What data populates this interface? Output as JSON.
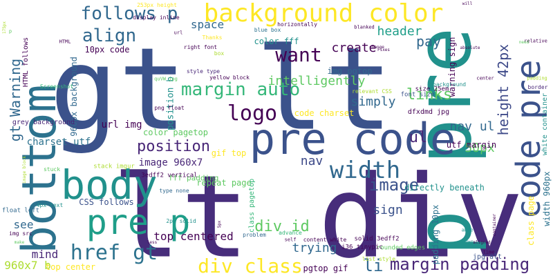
{
  "palette": {
    "background": "#ffffff",
    "c1": "#440154",
    "c2": "#3b528b",
    "c3": "#21918c",
    "c4": "#5ec962",
    "c5": "#fde725",
    "c6": "#2c728e",
    "c7": "#27ad81",
    "c8": "#addc30"
  },
  "words": [
    {
      "text": "gt lt",
      "color": "#3b528b"
    },
    {
      "text": "lt div",
      "color": "#472d7b"
    },
    {
      "text": "p pre",
      "color": "#21918c"
    },
    {
      "text": "bottom",
      "color": "#2c728e"
    },
    {
      "text": "pre code",
      "color": "#3b528b"
    },
    {
      "text": "body",
      "color": "#21918c"
    },
    {
      "text": "pre p",
      "color": "#1f9e89"
    },
    {
      "text": "code pre",
      "color": "#3b528b"
    },
    {
      "text": "background color",
      "color": "#fde725"
    },
    {
      "text": "width",
      "color": "#31688e"
    },
    {
      "text": "div class",
      "color": "#fde725"
    },
    {
      "text": "href gt",
      "color": "#2c728e"
    },
    {
      "text": "logo",
      "color": "#440154"
    },
    {
      "text": "margin auto",
      "color": "#35b779"
    },
    {
      "text": "align",
      "color": "#31688e"
    },
    {
      "text": "follows p",
      "color": "#31688e"
    },
    {
      "text": "want",
      "color": "#440154"
    },
    {
      "text": "margin padding",
      "color": "#482677"
    },
    {
      "text": "gt Warning",
      "color": "#31688e"
    },
    {
      "text": "div id",
      "color": "#5ec962"
    },
    {
      "text": "image",
      "color": "#3b528b"
    },
    {
      "text": "position",
      "color": "#482677"
    },
    {
      "text": "height 42px",
      "color": "#3e4a89"
    },
    {
      "text": "li",
      "color": "#31688e"
    },
    {
      "text": "header",
      "color": "#1f9e89"
    },
    {
      "text": "create",
      "color": "#440154"
    },
    {
      "text": "nav",
      "color": "#3e4a89"
    },
    {
      "text": "ul",
      "color": "#482677"
    },
    {
      "text": "pay",
      "color": "#31688e"
    },
    {
      "text": "links",
      "color": "#5ec962"
    },
    {
      "text": "nav ul",
      "color": "#31688e"
    },
    {
      "text": "50px",
      "color": "#5ec962"
    },
    {
      "text": "simply",
      "color": "#31688e"
    },
    {
      "text": "intelligently",
      "color": "#5ec962"
    },
    {
      "text": "trying",
      "color": "#31688e"
    },
    {
      "text": "sign",
      "color": "#3b528b"
    },
    {
      "text": "mind",
      "color": "#482677"
    },
    {
      "text": "space",
      "color": "#31688e"
    },
    {
      "text": "top centered",
      "color": "#440154"
    },
    {
      "text": "960x7 b",
      "color": "#addc30"
    },
    {
      "text": "image 960x7",
      "color": "#482677"
    },
    {
      "text": "charset utf",
      "color": "#2c728e"
    },
    {
      "text": "see",
      "color": "#31688e"
    },
    {
      "text": "url img",
      "color": "#440154"
    },
    {
      "text": "position b",
      "color": "#21918c"
    },
    {
      "text": "color pagetop",
      "color": "#5ec962"
    },
    {
      "text": "code charset",
      "color": "#fde725"
    },
    {
      "text": "gif top",
      "color": "#fde725"
    },
    {
      "text": "repeat page",
      "color": "#5ec962"
    },
    {
      "text": "directly beneath",
      "color": "#21918c"
    },
    {
      "text": "CSS follows",
      "color": "#3b528b"
    },
    {
      "text": "pgtop gif",
      "color": "#440154"
    },
    {
      "text": "top center",
      "color": "#fde725"
    },
    {
      "text": "img pgtop",
      "color": "#31688e"
    },
    {
      "text": "color fff",
      "color": "#21918c"
    },
    {
      "text": "10px code",
      "color": "#440154"
    },
    {
      "text": "960px background",
      "color": "#31688e"
    },
    {
      "text": "HTML follows",
      "color": "#440154"
    },
    {
      "text": "utf margin",
      "color": "#440154"
    },
    {
      "text": "padding 10px",
      "color": "#2c728e"
    },
    {
      "text": "warning sign",
      "color": "#440154"
    },
    {
      "text": "class page",
      "color": "#fde725"
    },
    {
      "text": "width 960px",
      "color": "#2c728e"
    },
    {
      "text": "white container",
      "color": "#21918c"
    },
    {
      "text": "grey background",
      "color": "#482677"
    },
    {
      "text": "class pagetop",
      "color": "#35b779"
    },
    {
      "text": "fff padding",
      "color": "#5ec962"
    },
    {
      "text": "dfxdmd jpg",
      "color": "#440154"
    },
    {
      "text": "3edff2 vertical",
      "color": "#440154"
    },
    {
      "text": "solid 3edff2",
      "color": "#440154"
    },
    {
      "text": "rounded edges",
      "color": "#5ec962"
    },
    {
      "text": "stack imgur",
      "color": "#addc30"
    },
    {
      "text": "i36 tinypic",
      "color": "#440154"
    },
    {
      "text": "float left",
      "color": "#31688e"
    },
    {
      "text": "4px text",
      "color": "#21918c"
    },
    {
      "text": "type none",
      "color": "#31688e"
    },
    {
      "text": "2px solid",
      "color": "#21918c"
    },
    {
      "text": "problem",
      "color": "#31688e"
    },
    {
      "text": "content white",
      "color": "#440154"
    },
    {
      "text": "list style",
      "color": "#addc30"
    },
    {
      "text": "jpg alt",
      "color": "#3b528b"
    },
    {
      "text": "img src",
      "color": "#440154"
    },
    {
      "text": "Screenshot",
      "color": "#35b779"
    },
    {
      "text": "font size",
      "color": "#3b528b"
    },
    {
      "text": "size 25em",
      "color": "#440154"
    },
    {
      "text": "relevant CSS",
      "color": "#addc30"
    },
    {
      "text": "background",
      "color": "#21918c"
    },
    {
      "text": "yellow block",
      "color": "#440154"
    },
    {
      "text": "blue box",
      "color": "#2c728e"
    },
    {
      "text": "style type",
      "color": "#482677"
    },
    {
      "text": "png float",
      "color": "#440154"
    },
    {
      "text": "right font",
      "color": "#440154"
    },
    {
      "text": "horizontally",
      "color": "#440154"
    },
    {
      "text": "quVW jpg",
      "color": "#5ec962"
    },
    {
      "text": "box",
      "color": "#addc30"
    },
    {
      "text": "Thanks",
      "color": "#fde725"
    },
    {
      "text": "display inline",
      "color": "#440154"
    },
    {
      "text": "253px height",
      "color": "#fde725"
    },
    {
      "text": "175px",
      "color": "#addc30"
    },
    {
      "text": "url",
      "color": "#440154"
    },
    {
      "text": "blanked",
      "color": "#440154"
    },
    {
      "text": "center",
      "color": "#440154"
    },
    {
      "text": "border",
      "color": "#482677"
    },
    {
      "text": "padding",
      "color": "#addc30"
    },
    {
      "text": "relative",
      "color": "#440154"
    },
    {
      "text": "absolute",
      "color": "#440154"
    },
    {
      "text": "will",
      "color": "#440154"
    },
    {
      "text": "need",
      "color": "#5ec962"
    },
    {
      "text": "stuck",
      "color": "#5ec962"
    },
    {
      "text": "able",
      "color": "#21918c"
    },
    {
      "text": "aligned",
      "color": "#440154"
    },
    {
      "text": "advance",
      "color": "#35b779"
    },
    {
      "text": "self",
      "color": "#440154"
    },
    {
      "text": "change",
      "color": "#440154"
    },
    {
      "text": "5px",
      "color": "#440154"
    },
    {
      "text": "time",
      "color": "#440154"
    },
    {
      "text": "less",
      "color": "#440154"
    },
    {
      "text": "known",
      "color": "#21918c"
    },
    {
      "text": "p",
      "color": "#5ec962"
    },
    {
      "text": "image block",
      "color": "#addc30"
    },
    {
      "text": "container",
      "color": "#440154"
    },
    {
      "text": "make",
      "color": "#5ec962"
    },
    {
      "text": "HTML",
      "color": "#440154"
    },
    {
      "text": "Fixes",
      "color": "#440154"
    }
  ]
}
